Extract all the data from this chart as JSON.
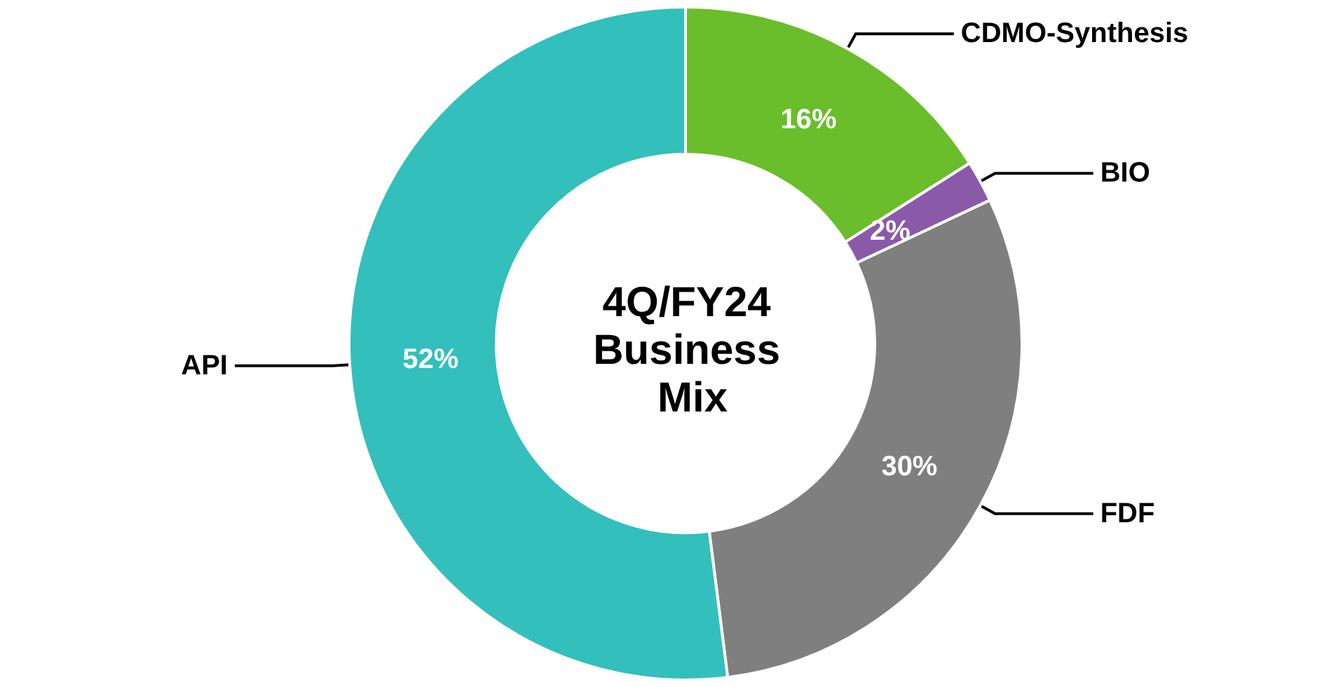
{
  "chart_data": {
    "type": "donut",
    "title": "4Q/FY24 Business Mix",
    "categories": [
      "CDMO-Synthesis",
      "BIO",
      "FDF",
      "API"
    ],
    "values": [
      16,
      2,
      30,
      52
    ],
    "colors": [
      "#6abd2b",
      "#8a5aa8",
      "#7f7f7f",
      "#33bfbb"
    ],
    "value_labels": [
      "16%",
      "2%",
      "30%",
      "52%"
    ],
    "legend": false
  }
}
